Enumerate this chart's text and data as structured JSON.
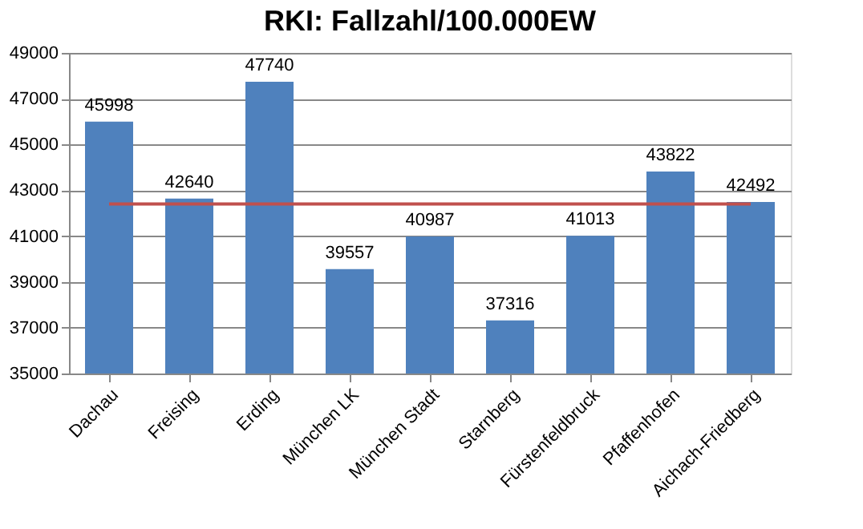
{
  "chart_data": {
    "type": "bar",
    "title": "RKI: Fallzahl/100.000EW",
    "categories": [
      "Dachau",
      "Freising",
      "Erding",
      "München LK",
      "München Stadt",
      "Starnberg",
      "Fürstenfeldbruck",
      "Pfaffenhofen",
      "Aichach-Friedberg"
    ],
    "series": [
      {
        "color": "#4f81bd",
        "values": [
          45998,
          42640,
          47740,
          39557,
          40987,
          37316,
          41013,
          43822,
          42492
        ],
        "value_labels": [
          "45998",
          "42640",
          "47740",
          "39557",
          "40987",
          "37316",
          "41013",
          "43822",
          "42492"
        ]
      },
      {
        "type": "line",
        "color": "#c0504d",
        "values": [
          42400,
          42400,
          42400,
          42400,
          42400,
          42400,
          42400,
          42400,
          42400
        ]
      }
    ],
    "ylim": [
      35000,
      49000
    ],
    "yticks": [
      35000,
      37000,
      39000,
      41000,
      43000,
      45000,
      47000,
      49000
    ],
    "grid": "y"
  }
}
